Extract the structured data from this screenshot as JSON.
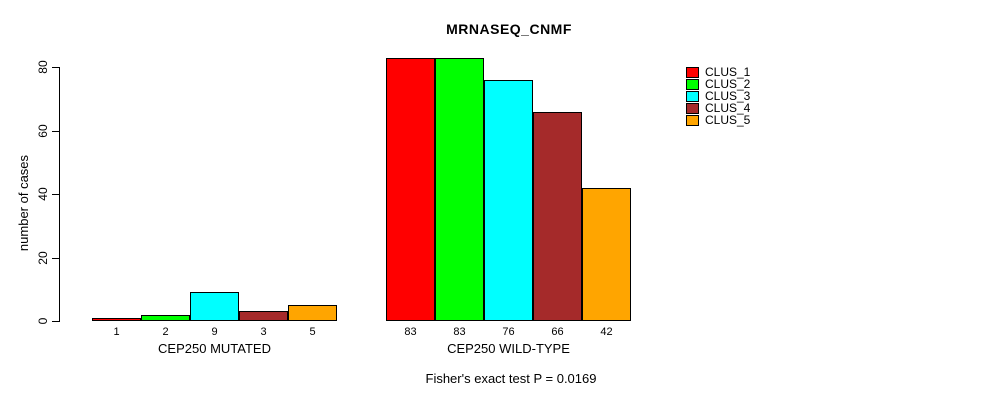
{
  "title": "MRNASEQ_CNMF",
  "caption": "Fisher's exact test P = 0.0169",
  "chart_data": {
    "type": "bar",
    "title": "MRNASEQ_CNMF",
    "xlabel": "",
    "ylabel": "number of cases",
    "ylim": [
      0,
      83
    ],
    "yticks": [
      0,
      20,
      40,
      60,
      80
    ],
    "grid": false,
    "legend_position": "top-right",
    "bar_border_color": "#000000",
    "series": [
      {
        "name": "CLUS_1",
        "color": "#FF0000"
      },
      {
        "name": "CLUS_2",
        "color": "#00FF00"
      },
      {
        "name": "CLUS_3",
        "color": "#00FFFF"
      },
      {
        "name": "CLUS_4",
        "color": "#A52A2A"
      },
      {
        "name": "CLUS_5",
        "color": "#FFA500"
      }
    ],
    "groups": [
      {
        "label": "CEP250 MUTATED",
        "values": [
          1,
          2,
          9,
          3,
          5
        ]
      },
      {
        "label": "CEP250 WILD-TYPE",
        "values": [
          83,
          83,
          76,
          66,
          42
        ]
      }
    ],
    "annotation": "Fisher's exact test P = 0.0169"
  }
}
